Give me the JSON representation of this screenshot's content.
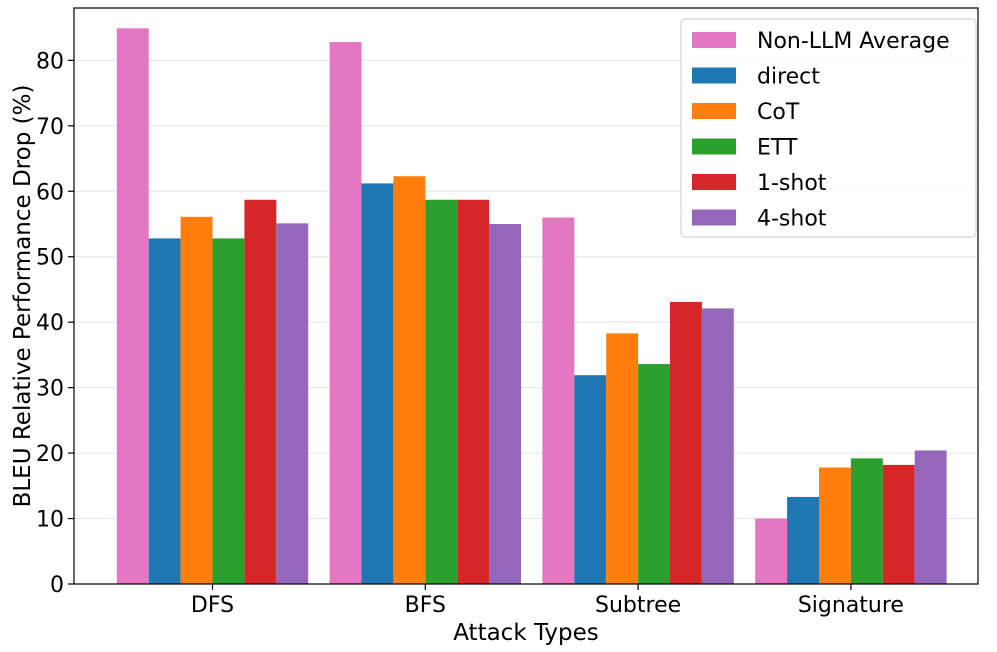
{
  "chart_data": {
    "type": "bar",
    "title": "",
    "xlabel": "Attack Types",
    "ylabel": "BLEU Relative Performance Drop (%)",
    "ylim": [
      0,
      88
    ],
    "yticks": [
      "0",
      "10",
      "20",
      "30",
      "40",
      "50",
      "60",
      "70",
      "80"
    ],
    "grid": "horizontal",
    "legend_position": "top-right",
    "categories": [
      "DFS",
      "BFS",
      "Subtree",
      "Signature"
    ],
    "series": [
      {
        "name": "Non-LLM Average",
        "color": "#e377c2",
        "values": [
          84.9,
          82.8,
          56.0,
          10.0
        ]
      },
      {
        "name": "direct",
        "color": "#1f77b4",
        "values": [
          52.8,
          61.2,
          31.9,
          13.3
        ]
      },
      {
        "name": "CoT",
        "color": "#ff7f0e",
        "values": [
          56.1,
          62.3,
          38.3,
          17.8
        ]
      },
      {
        "name": "ETT",
        "color": "#2ca02c",
        "values": [
          52.8,
          58.7,
          33.6,
          19.2
        ]
      },
      {
        "name": "1-shot",
        "color": "#d62728",
        "values": [
          58.7,
          58.7,
          43.1,
          18.2
        ]
      },
      {
        "name": "4-shot",
        "color": "#9467bd",
        "values": [
          55.1,
          55.0,
          42.1,
          20.4
        ]
      }
    ]
  }
}
